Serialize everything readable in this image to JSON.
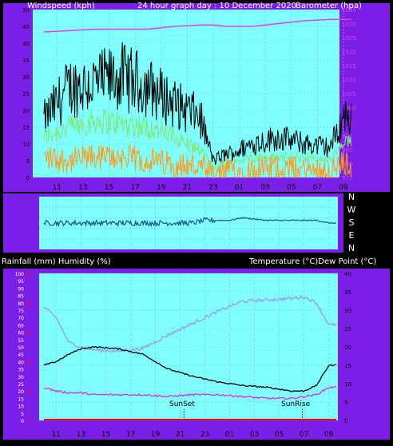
{
  "colors": {
    "frame": "#7b1fe8",
    "plot_bg": "#80ffff",
    "grid": "#8fb7c8",
    "wind_gust": "#000000",
    "wind_avg": "#7ee87e",
    "wind_min": "#ff9a1a",
    "barometer": "#e040e0",
    "direction": "#1f5f8f",
    "temperature": "#000000",
    "humidity": "#9a9ae8",
    "dew_point": "#e020e0",
    "rainfall": "#ff0000",
    "axis_text": "#000000",
    "label_text": "#ffffff"
  },
  "panel1": {
    "left_label": "Windspeed (kph)",
    "title": "24 hour graph day : 10 December 2020",
    "right_label": "Barometer (hpa)"
  },
  "panel2": {
    "compass": [
      "N",
      "W",
      "S",
      "E",
      "N"
    ]
  },
  "panel3": {
    "left_label": "Rainfall (mm)  Humidity (%)",
    "right_label": "Temperature (°C)Dew Point (°C)",
    "sunset_label": "SunSet",
    "sunrise_label": "SunRise"
  },
  "chart_data": [
    {
      "type": "line",
      "name": "wind-barometer",
      "x_ticks": [
        "11",
        "13",
        "15",
        "17",
        "19",
        "21",
        "23",
        "01",
        "03",
        "05",
        "07",
        "09"
      ],
      "left_axis": {
        "label": "Windspeed (kph)",
        "ylim": [
          0,
          50
        ],
        "ticks": [
          0,
          5,
          10,
          15,
          20,
          25,
          30,
          35,
          40,
          45,
          50
        ]
      },
      "right_axis": {
        "label": "Barometer (hpa)",
        "ylim": [
          975,
          1035
        ],
        "ticks": [
          975,
          980,
          985,
          990,
          995,
          1000,
          1005,
          1010,
          1015,
          1020,
          1025,
          1030,
          1035
        ]
      },
      "x_hours_from_start": [
        0,
        2,
        4,
        6,
        8,
        10,
        12,
        13,
        14,
        15,
        16,
        18,
        20,
        22,
        23
      ],
      "series": [
        {
          "values_gust": [
            17,
            27,
            28,
            30,
            27,
            22,
            18,
            5,
            7,
            8,
            10,
            12,
            10,
            9,
            18
          ]
        },
        {
          "values_avg": [
            12,
            15,
            17,
            16,
            15,
            12,
            8,
            3,
            4,
            5,
            6,
            6,
            6,
            5,
            10
          ]
        },
        {
          "values_min": [
            6,
            5,
            6,
            6,
            5,
            4,
            3,
            0,
            2,
            2,
            2,
            3,
            2,
            2,
            4
          ]
        },
        {
          "values_barometer": [
            1027,
            1027.5,
            1028,
            1028,
            1028,
            1029,
            1029.5,
            1029.5,
            1029,
            1029,
            1029,
            1030,
            1031,
            1031.5,
            1031.5
          ]
        }
      ]
    },
    {
      "type": "line",
      "name": "wind-direction",
      "x_ticks": [
        "11",
        "13",
        "15",
        "17",
        "19",
        "21",
        "23",
        "01",
        "03",
        "05",
        "07",
        "09"
      ],
      "series": [
        {
          "values_direction_level": [
            0.5,
            0.5,
            0.5,
            0.5,
            0.5,
            0.5,
            0.5,
            0.55,
            0.55,
            0.55,
            0.6,
            0.55,
            0.55,
            0.55,
            0.5
          ]
        }
      ]
    },
    {
      "type": "line",
      "name": "temperature-humidity",
      "x_ticks": [
        "11",
        "13",
        "15",
        "17",
        "19",
        "21",
        "23",
        "01",
        "03",
        "05",
        "07",
        "09"
      ],
      "left_axis": {
        "label": "Rainfall (mm)  Humidity (%)",
        "ylim": [
          0,
          100
        ],
        "ticks": [
          0,
          5,
          10,
          15,
          20,
          25,
          30,
          35,
          40,
          45,
          50,
          55,
          60,
          65,
          70,
          75,
          80,
          85,
          90,
          95,
          100
        ],
        "rain_ticks": [
          0,
          10,
          20,
          30,
          40,
          50
        ]
      },
      "right_axis": {
        "label": "Temperature (°C)Dew Point (°C)",
        "ylim": [
          0,
          40
        ],
        "ticks": [
          0,
          5,
          10,
          15,
          20,
          25,
          30,
          35,
          40
        ]
      },
      "x_hours_from_start": [
        0,
        1,
        2,
        3,
        4,
        6,
        8,
        10,
        12,
        14,
        16,
        18,
        20,
        21,
        22,
        23
      ],
      "series": [
        {
          "values_humidity": [
            77,
            70,
            53,
            50,
            48,
            47,
            49,
            58,
            66,
            74,
            81,
            82,
            83,
            84,
            80,
            65
          ]
        },
        {
          "values_temperature": [
            15,
            16,
            18,
            19.5,
            20,
            19.5,
            18,
            14,
            12,
            10.5,
            9.5,
            9,
            8,
            8,
            9.5,
            15
          ]
        },
        {
          "values_dew_point": [
            9,
            8,
            7.5,
            7.5,
            7,
            7,
            7,
            6.5,
            7,
            7,
            6.5,
            6,
            6,
            6.5,
            7,
            9
          ]
        },
        {
          "values_rainfall": [
            0,
            0,
            0,
            0,
            0,
            0,
            0,
            0,
            0,
            0,
            0,
            0,
            0,
            0,
            0,
            0
          ]
        }
      ]
    }
  ]
}
